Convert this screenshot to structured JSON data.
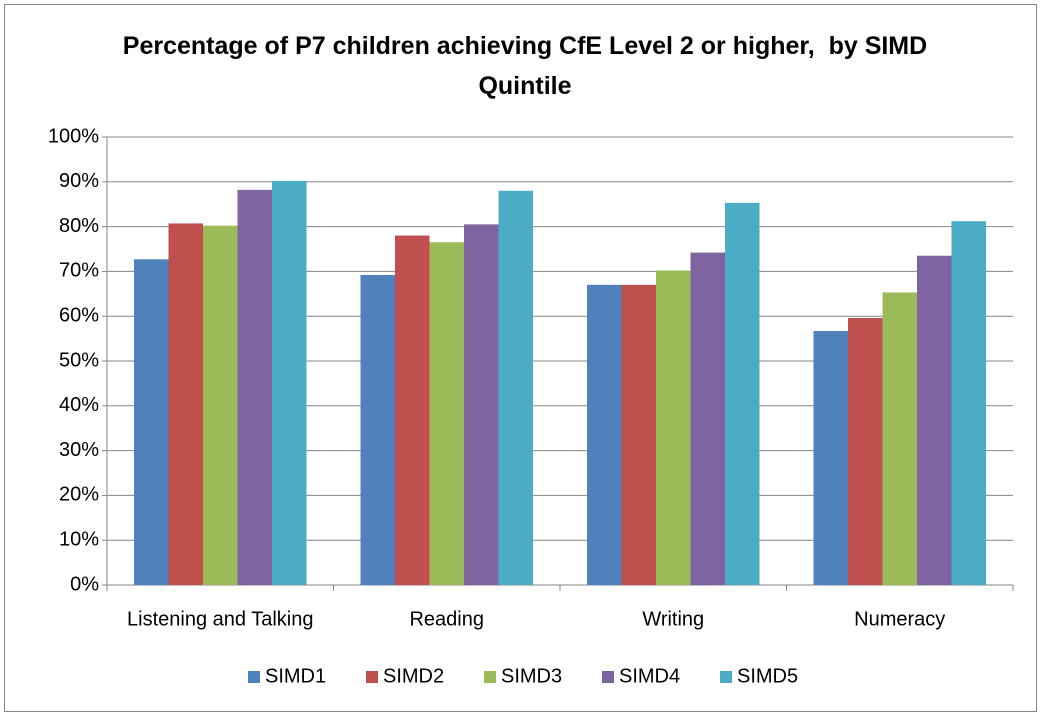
{
  "chart_data": {
    "type": "bar",
    "title": "Percentage of P7 children achieving CfE Level 2 or higher,  by SIMD Quintile",
    "categories": [
      "Listening and Talking",
      "Reading",
      "Writing",
      "Numeracy"
    ],
    "series": [
      {
        "name": "SIMD1",
        "color": "#4f81bd",
        "values": [
          72.7,
          69.2,
          67,
          56.7
        ]
      },
      {
        "name": "SIMD2",
        "color": "#c0504d",
        "values": [
          80.7,
          78,
          67,
          59.6
        ]
      },
      {
        "name": "SIMD3",
        "color": "#9bbb59",
        "values": [
          80.2,
          76.5,
          70.2,
          65.3
        ]
      },
      {
        "name": "SIMD4",
        "color": "#8064a2",
        "values": [
          88.2,
          80.5,
          74.2,
          73.5
        ]
      },
      {
        "name": "SIMD5",
        "color": "#4bacc6",
        "values": [
          90.2,
          88,
          85.3,
          81.2
        ]
      }
    ],
    "ylim": [
      0,
      100
    ],
    "yticks": [
      {
        "value": 0,
        "label": "0%"
      },
      {
        "value": 10,
        "label": "10%"
      },
      {
        "value": 20,
        "label": "20%"
      },
      {
        "value": 30,
        "label": "30%"
      },
      {
        "value": 40,
        "label": "40%"
      },
      {
        "value": 50,
        "label": "50%"
      },
      {
        "value": 60,
        "label": "60%"
      },
      {
        "value": 70,
        "label": "70%"
      },
      {
        "value": 80,
        "label": "80%"
      },
      {
        "value": 90,
        "label": "90%"
      },
      {
        "value": 100,
        "label": "100%"
      }
    ],
    "grid": true,
    "legend": "bottom"
  }
}
